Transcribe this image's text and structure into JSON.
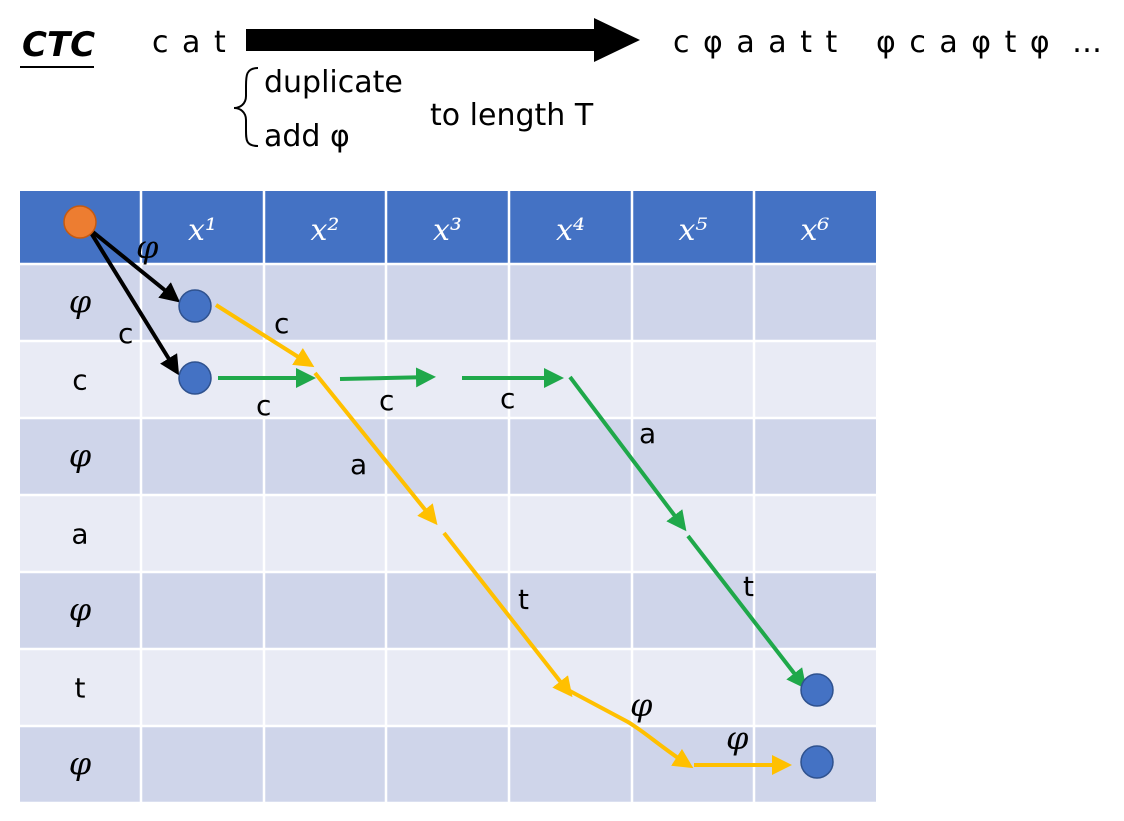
{
  "title": "CTC",
  "input_word": "c a t",
  "brace_lines": [
    "duplicate",
    "add φ"
  ],
  "brace_suffix": "to length T",
  "outputs": [
    "c φ a a t t",
    "φ c a φ t φ",
    "…"
  ],
  "columns": [
    "x¹",
    "x²",
    "x³",
    "x⁴",
    "x⁵",
    "x⁶"
  ],
  "rows": [
    "φ",
    "c",
    "φ",
    "a",
    "φ",
    "t",
    "φ"
  ],
  "colors": {
    "header": "#4472C4",
    "row_dark": "#CFD5EA",
    "row_light": "#E9EBF5",
    "start_node": "#ED7D31",
    "node": "#4472C4",
    "path_green": "#1FA84A",
    "path_yellow": "#FFC000",
    "path_black": "#000000"
  },
  "edge_labels": {
    "start_phi": "φ",
    "start_c": "c",
    "y_c": "c",
    "g_c1": "c",
    "g_c2": "c",
    "g_c3": "c",
    "y_a": "a",
    "g_a": "a",
    "y_t": "t",
    "g_t": "t",
    "y_phi1": "φ",
    "y_phi2": "φ"
  }
}
